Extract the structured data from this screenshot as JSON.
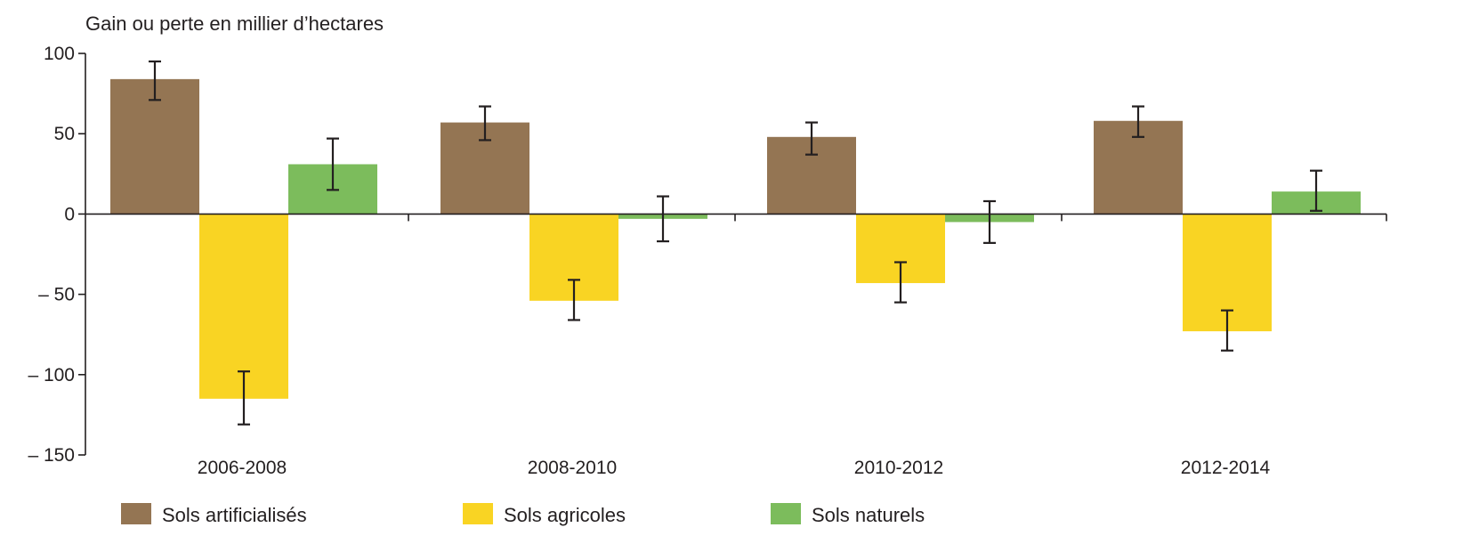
{
  "chart_data": {
    "type": "bar",
    "ylabel": "Gain ou perte en millier d’hectares",
    "categories": [
      "2006-2008",
      "2008-2010",
      "2010-2012",
      "2012-2014"
    ],
    "ylim": [
      -150,
      100
    ],
    "yticks": [
      100,
      50,
      0,
      -50,
      -100,
      -150
    ],
    "ytick_labels": [
      "100",
      "50",
      "0",
      "– 50",
      "– 100",
      "– 150"
    ],
    "grid": false,
    "legend_position": "bottom",
    "series": [
      {
        "name": "Sols artificialisés",
        "color": "#947553",
        "values": [
          84,
          57,
          48,
          58
        ],
        "error_low": [
          71,
          46,
          37,
          48
        ],
        "error_high": [
          95,
          67,
          57,
          67
        ]
      },
      {
        "name": "Sols agricoles",
        "color": "#f9d423",
        "values": [
          -115,
          -54,
          -43,
          -73
        ],
        "error_low": [
          -131,
          -66,
          -55,
          -85
        ],
        "error_high": [
          -98,
          -41,
          -30,
          -60
        ]
      },
      {
        "name": "Sols naturels",
        "color": "#7cbc5c",
        "values": [
          31,
          -3,
          -5,
          14
        ],
        "error_low": [
          15,
          -17,
          -18,
          2
        ],
        "error_high": [
          47,
          11,
          8,
          27
        ]
      }
    ]
  }
}
